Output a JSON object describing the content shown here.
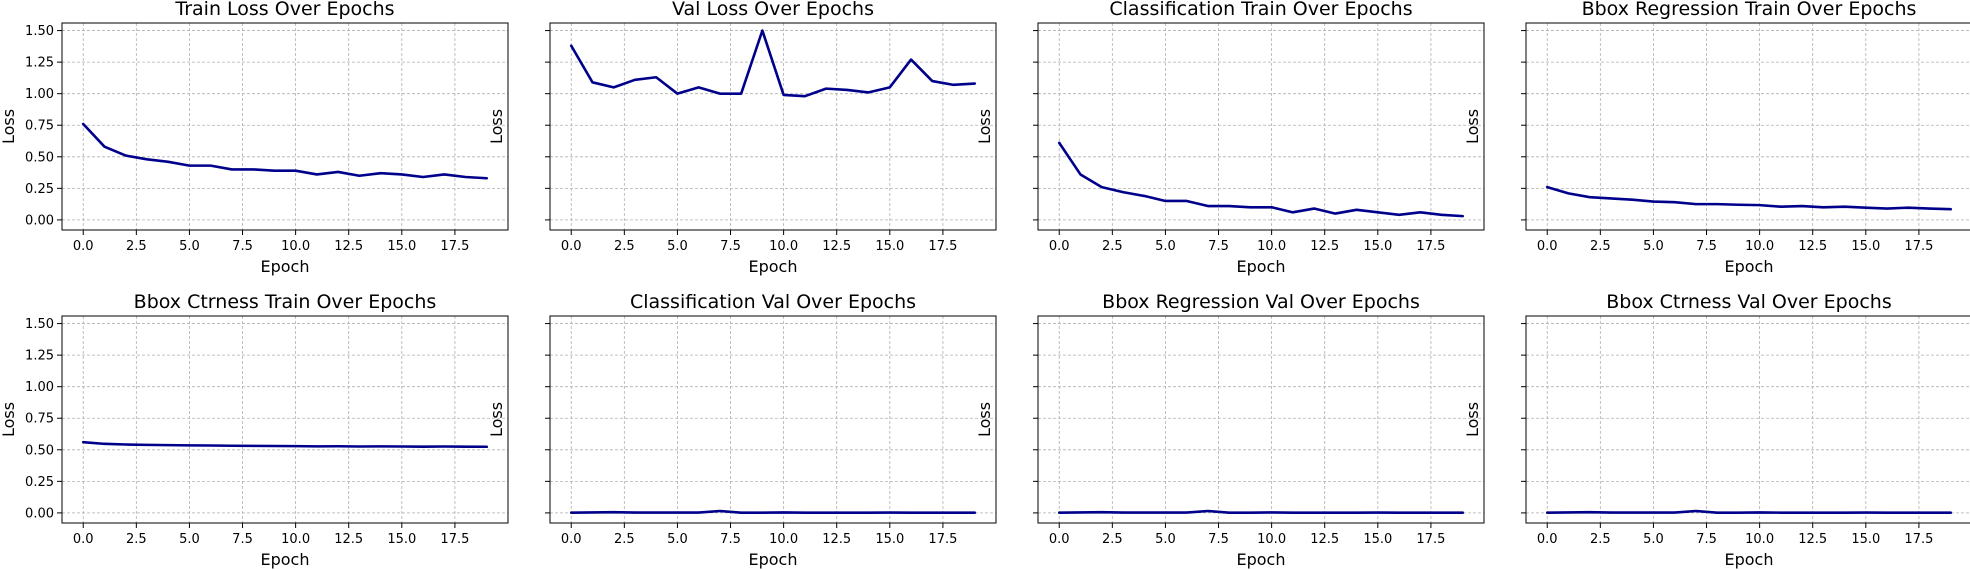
{
  "series_color": "#00008b",
  "chart_data": [
    {
      "type": "line",
      "title": "Train Loss Over Epochs",
      "xlabel": "Epoch",
      "ylabel": "Loss",
      "xlim": [
        -1,
        20
      ],
      "ylim": [
        -0.08,
        1.56
      ],
      "xticks": [
        0.0,
        2.5,
        5.0,
        7.5,
        10.0,
        12.5,
        15.0,
        17.5
      ],
      "yticks": [
        0.0,
        0.25,
        0.5,
        0.75,
        1.0,
        1.25,
        1.5
      ],
      "show_yticklabels": true,
      "grid": true,
      "x": [
        0,
        1,
        2,
        3,
        4,
        5,
        6,
        7,
        8,
        9,
        10,
        11,
        12,
        13,
        14,
        15,
        16,
        17,
        18,
        19
      ],
      "y": [
        0.76,
        0.58,
        0.51,
        0.48,
        0.46,
        0.43,
        0.43,
        0.4,
        0.4,
        0.39,
        0.39,
        0.36,
        0.38,
        0.35,
        0.37,
        0.36,
        0.34,
        0.36,
        0.34,
        0.33
      ]
    },
    {
      "type": "line",
      "title": "Val Loss Over Epochs",
      "xlabel": "Epoch",
      "ylabel": "Loss",
      "xlim": [
        -1,
        20
      ],
      "ylim": [
        -0.08,
        1.56
      ],
      "xticks": [
        0.0,
        2.5,
        5.0,
        7.5,
        10.0,
        12.5,
        15.0,
        17.5
      ],
      "yticks": [
        0.0,
        0.25,
        0.5,
        0.75,
        1.0,
        1.25,
        1.5
      ],
      "show_yticklabels": false,
      "grid": true,
      "x": [
        0,
        1,
        2,
        3,
        4,
        5,
        6,
        7,
        8,
        9,
        10,
        11,
        12,
        13,
        14,
        15,
        16,
        17,
        18,
        19
      ],
      "y": [
        1.38,
        1.09,
        1.05,
        1.11,
        1.13,
        1.0,
        1.05,
        1.0,
        1.0,
        1.5,
        0.99,
        0.98,
        1.04,
        1.03,
        1.01,
        1.05,
        1.27,
        1.1,
        1.07,
        1.08
      ]
    },
    {
      "type": "line",
      "title": "Classification Train Over Epochs",
      "xlabel": "Epoch",
      "ylabel": "Loss",
      "xlim": [
        -1,
        20
      ],
      "ylim": [
        -0.08,
        1.56
      ],
      "xticks": [
        0.0,
        2.5,
        5.0,
        7.5,
        10.0,
        12.5,
        15.0,
        17.5
      ],
      "yticks": [
        0.0,
        0.25,
        0.5,
        0.75,
        1.0,
        1.25,
        1.5
      ],
      "show_yticklabels": false,
      "grid": true,
      "x": [
        0,
        1,
        2,
        3,
        4,
        5,
        6,
        7,
        8,
        9,
        10,
        11,
        12,
        13,
        14,
        15,
        16,
        17,
        18,
        19
      ],
      "y": [
        0.61,
        0.36,
        0.26,
        0.22,
        0.19,
        0.15,
        0.15,
        0.11,
        0.11,
        0.1,
        0.1,
        0.06,
        0.09,
        0.05,
        0.08,
        0.06,
        0.04,
        0.06,
        0.04,
        0.03
      ]
    },
    {
      "type": "line",
      "title": "Bbox Regression Train Over Epochs",
      "xlabel": "Epoch",
      "ylabel": "Loss",
      "xlim": [
        -1,
        20
      ],
      "ylim": [
        -0.08,
        1.56
      ],
      "xticks": [
        0.0,
        2.5,
        5.0,
        7.5,
        10.0,
        12.5,
        15.0,
        17.5
      ],
      "yticks": [
        0.0,
        0.25,
        0.5,
        0.75,
        1.0,
        1.25,
        1.5
      ],
      "show_yticklabels": false,
      "grid": true,
      "x": [
        0,
        1,
        2,
        3,
        4,
        5,
        6,
        7,
        8,
        9,
        10,
        11,
        12,
        13,
        14,
        15,
        16,
        17,
        18,
        19
      ],
      "y": [
        0.26,
        0.21,
        0.18,
        0.17,
        0.16,
        0.145,
        0.14,
        0.125,
        0.125,
        0.12,
        0.117,
        0.105,
        0.11,
        0.1,
        0.105,
        0.097,
        0.09,
        0.097,
        0.09,
        0.085
      ]
    },
    {
      "type": "line",
      "title": "Bbox Ctrness Train Over Epochs",
      "xlabel": "Epoch",
      "ylabel": "Loss",
      "xlim": [
        -1,
        20
      ],
      "ylim": [
        -0.08,
        1.56
      ],
      "xticks": [
        0.0,
        2.5,
        5.0,
        7.5,
        10.0,
        12.5,
        15.0,
        17.5
      ],
      "yticks": [
        0.0,
        0.25,
        0.5,
        0.75,
        1.0,
        1.25,
        1.5
      ],
      "show_yticklabels": true,
      "grid": true,
      "x": [
        0,
        1,
        2,
        3,
        4,
        5,
        6,
        7,
        8,
        9,
        10,
        11,
        12,
        13,
        14,
        15,
        16,
        17,
        18,
        19
      ],
      "y": [
        0.56,
        0.547,
        0.542,
        0.539,
        0.537,
        0.535,
        0.534,
        0.532,
        0.531,
        0.53,
        0.529,
        0.527,
        0.528,
        0.526,
        0.527,
        0.526,
        0.525,
        0.526,
        0.525,
        0.524
      ]
    },
    {
      "type": "line",
      "title": "Classification Val Over Epochs",
      "xlabel": "Epoch",
      "ylabel": "Loss",
      "xlim": [
        -1,
        20
      ],
      "ylim": [
        -0.08,
        1.56
      ],
      "xticks": [
        0.0,
        2.5,
        5.0,
        7.5,
        10.0,
        12.5,
        15.0,
        17.5
      ],
      "yticks": [
        0.0,
        0.25,
        0.5,
        0.75,
        1.0,
        1.25,
        1.5
      ],
      "show_yticklabels": false,
      "grid": true,
      "x": [
        0,
        1,
        2,
        3,
        4,
        5,
        6,
        7,
        8,
        9,
        10,
        11,
        12,
        13,
        14,
        15,
        16,
        17,
        18,
        19
      ],
      "y": [
        0.002,
        0.004,
        0.006,
        0.003,
        0.003,
        0.003,
        0.003,
        0.015,
        0.002,
        0.002,
        0.004,
        0.002,
        0.002,
        0.002,
        0.002,
        0.003,
        0.002,
        0.002,
        0.002,
        0.002
      ]
    },
    {
      "type": "line",
      "title": "Bbox Regression Val Over Epochs",
      "xlabel": "Epoch",
      "ylabel": "Loss",
      "xlim": [
        -1,
        20
      ],
      "ylim": [
        -0.08,
        1.56
      ],
      "xticks": [
        0.0,
        2.5,
        5.0,
        7.5,
        10.0,
        12.5,
        15.0,
        17.5
      ],
      "yticks": [
        0.0,
        0.25,
        0.5,
        0.75,
        1.0,
        1.25,
        1.5
      ],
      "show_yticklabels": false,
      "grid": true,
      "x": [
        0,
        1,
        2,
        3,
        4,
        5,
        6,
        7,
        8,
        9,
        10,
        11,
        12,
        13,
        14,
        15,
        16,
        17,
        18,
        19
      ],
      "y": [
        0.002,
        0.004,
        0.006,
        0.003,
        0.003,
        0.003,
        0.003,
        0.015,
        0.002,
        0.002,
        0.004,
        0.002,
        0.002,
        0.002,
        0.002,
        0.003,
        0.002,
        0.002,
        0.002,
        0.002
      ]
    },
    {
      "type": "line",
      "title": "Bbox Ctrness Val Over Epochs",
      "xlabel": "Epoch",
      "ylabel": "Loss",
      "xlim": [
        -1,
        20
      ],
      "ylim": [
        -0.08,
        1.56
      ],
      "xticks": [
        0.0,
        2.5,
        5.0,
        7.5,
        10.0,
        12.5,
        15.0,
        17.5
      ],
      "yticks": [
        0.0,
        0.25,
        0.5,
        0.75,
        1.0,
        1.25,
        1.5
      ],
      "show_yticklabels": false,
      "grid": true,
      "x": [
        0,
        1,
        2,
        3,
        4,
        5,
        6,
        7,
        8,
        9,
        10,
        11,
        12,
        13,
        14,
        15,
        16,
        17,
        18,
        19
      ],
      "y": [
        0.002,
        0.004,
        0.006,
        0.003,
        0.003,
        0.003,
        0.003,
        0.015,
        0.002,
        0.002,
        0.004,
        0.002,
        0.002,
        0.002,
        0.002,
        0.003,
        0.002,
        0.002,
        0.002,
        0.002
      ]
    }
  ]
}
